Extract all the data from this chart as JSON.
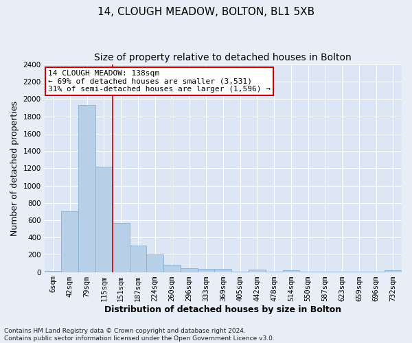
{
  "title": "14, CLOUGH MEADOW, BOLTON, BL1 5XB",
  "subtitle": "Size of property relative to detached houses in Bolton",
  "xlabel": "Distribution of detached houses by size in Bolton",
  "ylabel": "Number of detached properties",
  "categories": [
    "6sqm",
    "42sqm",
    "79sqm",
    "115sqm",
    "151sqm",
    "187sqm",
    "224sqm",
    "260sqm",
    "296sqm",
    "333sqm",
    "369sqm",
    "405sqm",
    "442sqm",
    "478sqm",
    "514sqm",
    "550sqm",
    "587sqm",
    "623sqm",
    "659sqm",
    "696sqm",
    "732sqm"
  ],
  "values": [
    15,
    700,
    1930,
    1220,
    570,
    305,
    200,
    80,
    45,
    35,
    35,
    5,
    30,
    5,
    20,
    5,
    5,
    5,
    5,
    5,
    20
  ],
  "bar_color": "#b8cfe8",
  "bar_edge_color": "#8ab0d0",
  "vline_x": 3.5,
  "vline_color": "#cc0000",
  "annotation_line1": "14 CLOUGH MEADOW: 138sqm",
  "annotation_line2": "← 69% of detached houses are smaller (3,531)",
  "annotation_line3": "31% of semi-detached houses are larger (1,596) →",
  "annotation_box_color": "#cc0000",
  "annotation_bg": "#ffffff",
  "ylim": [
    0,
    2400
  ],
  "yticks": [
    0,
    200,
    400,
    600,
    800,
    1000,
    1200,
    1400,
    1600,
    1800,
    2000,
    2200,
    2400
  ],
  "footnote": "Contains HM Land Registry data © Crown copyright and database right 2024.\nContains public sector information licensed under the Open Government Licence v3.0.",
  "bg_color": "#e8eef8",
  "plot_bg_color": "#dce6f4",
  "grid_color": "#ffffff",
  "title_fontsize": 11,
  "subtitle_fontsize": 10,
  "axis_label_fontsize": 9,
  "tick_fontsize": 7.5,
  "footnote_fontsize": 6.5
}
